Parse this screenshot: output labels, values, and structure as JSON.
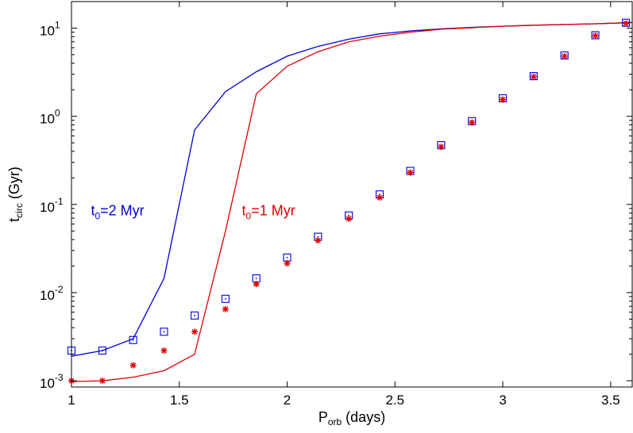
{
  "chart_data": {
    "type": "line",
    "xlabel": {
      "main": "P",
      "sub": "orb",
      "rest": " (days)"
    },
    "ylabel": {
      "main": "t",
      "sub": "circ",
      "rest": " (Gyr)"
    },
    "xlim": [
      1,
      3.6
    ],
    "ylim": [
      0.00085,
      20
    ],
    "yscale": "log",
    "grid": false,
    "x_ticks": [
      {
        "value": 1,
        "label": "1"
      },
      {
        "value": 1.5,
        "label": "1.5"
      },
      {
        "value": 2,
        "label": "2"
      },
      {
        "value": 2.5,
        "label": "2.5"
      },
      {
        "value": 3,
        "label": "3"
      },
      {
        "value": 3.5,
        "label": "3.5"
      }
    ],
    "y_ticks": [
      {
        "value": 0.001,
        "base": "10",
        "exp": "-3"
      },
      {
        "value": 0.01,
        "base": "10",
        "exp": "-2"
      },
      {
        "value": 0.1,
        "base": "10",
        "exp": "-1"
      },
      {
        "value": 1,
        "base": "10",
        "exp": "0"
      },
      {
        "value": 10,
        "base": "10",
        "exp": "1"
      }
    ],
    "annotations": [
      {
        "id": "t0-2",
        "main": "t",
        "sub": "0",
        "rest": "=2  Myr",
        "color": "#0000dd",
        "x": 1.09,
        "y": 0.085
      },
      {
        "id": "t0-1",
        "main": "t",
        "sub": "0",
        "rest": "=1  Myr",
        "color": "#dd0000",
        "x": 1.79,
        "y": 0.085
      }
    ],
    "series": [
      {
        "id": "blue-line",
        "kind": "line",
        "color": "#0000dd",
        "x": [
          1.0,
          1.143,
          1.286,
          1.429,
          1.571,
          1.714,
          1.857,
          2.0,
          2.143,
          2.286,
          2.429,
          2.571,
          2.714,
          2.857,
          3.0,
          3.143,
          3.286,
          3.429,
          3.571,
          3.6
        ],
        "y": [
          0.0019,
          0.0022,
          0.003,
          0.0145,
          0.7,
          1.9,
          3.2,
          4.8,
          6.2,
          7.5,
          8.6,
          9.3,
          9.8,
          10.2,
          10.5,
          10.8,
          11.0,
          11.2,
          11.5,
          11.6
        ]
      },
      {
        "id": "red-line",
        "kind": "line",
        "color": "#dd0000",
        "x": [
          1.0,
          1.143,
          1.286,
          1.429,
          1.571,
          1.714,
          1.857,
          2.0,
          2.143,
          2.286,
          2.429,
          2.571,
          2.714,
          2.857,
          3.0,
          3.143,
          3.286,
          3.429,
          3.571,
          3.6
        ],
        "y": [
          0.00098,
          0.001,
          0.0011,
          0.0013,
          0.002,
          0.05,
          1.8,
          3.7,
          5.4,
          7.0,
          8.1,
          9.0,
          9.7,
          10.1,
          10.5,
          10.8,
          11.0,
          11.2,
          11.5,
          11.6
        ]
      },
      {
        "id": "blue-squares",
        "kind": "square",
        "color": "#0000dd",
        "x": [
          1.0,
          1.143,
          1.286,
          1.429,
          1.571,
          1.714,
          1.857,
          2.0,
          2.143,
          2.286,
          2.429,
          2.571,
          2.714,
          2.857,
          3.0,
          3.143,
          3.286,
          3.429,
          3.571
        ],
        "y": [
          0.0022,
          0.0022,
          0.0029,
          0.0036,
          0.0055,
          0.0085,
          0.0145,
          0.025,
          0.043,
          0.075,
          0.13,
          0.24,
          0.47,
          0.88,
          1.6,
          2.85,
          4.9,
          8.3,
          11.5
        ]
      },
      {
        "id": "red-stars",
        "kind": "star",
        "color": "#dd0000",
        "x": [
          1.0,
          1.143,
          1.286,
          1.429,
          1.571,
          1.714,
          1.857,
          2.0,
          2.143,
          2.286,
          2.429,
          2.571,
          2.714,
          2.857,
          3.0,
          3.143,
          3.286,
          3.429,
          3.571
        ],
        "y": [
          0.001,
          0.001,
          0.0015,
          0.0022,
          0.0036,
          0.0065,
          0.0125,
          0.0215,
          0.039,
          0.069,
          0.12,
          0.23,
          0.45,
          0.85,
          1.55,
          2.8,
          4.8,
          8.2,
          11.3
        ]
      }
    ]
  }
}
